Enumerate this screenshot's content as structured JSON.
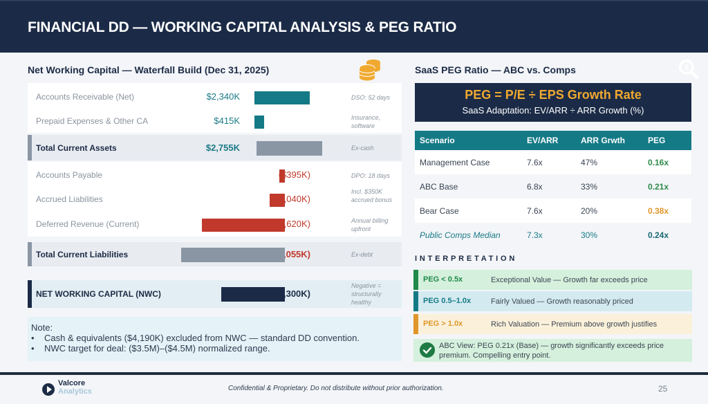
{
  "header": {
    "title": "FINANCIAL DD  —  WORKING CAPITAL ANALYSIS & PEG RATIO"
  },
  "waterfall": {
    "title": "Net Working Capital — Waterfall Build (Dec 31, 2025)",
    "icon": "coins-icon",
    "rows": [
      {
        "label": "Accounts Receivable (Net)",
        "value": "$2,340K",
        "amount_k": 2340,
        "note": "DSO: 52 days",
        "type": "asset"
      },
      {
        "label": "Prepaid Expenses & Other CA",
        "value": "$415K",
        "amount_k": 415,
        "note": "Insurance, software",
        "type": "asset"
      },
      {
        "label": "Total Current Assets",
        "value": "$2,755K",
        "amount_k": 2755,
        "note": "Ex-cash",
        "type": "total-assets"
      },
      {
        "label": "Accounts Payable",
        "value": "($395K)",
        "amount_k": -395,
        "note": "DPO: 18 days",
        "type": "liability"
      },
      {
        "label": "Accrued Liabilities",
        "value": "($1,040K)",
        "amount_k": -1040,
        "note": "Incl. $350K accrued bonus",
        "type": "liability"
      },
      {
        "label": "Deferred Revenue (Current)",
        "value": "($5,620K)",
        "amount_k": -5620,
        "note": "Annual billing upfront",
        "type": "liability"
      },
      {
        "label": "Total Current Liabilities",
        "value": "($7,055K)",
        "amount_k": -7055,
        "note": "Ex-debt",
        "type": "total-liabilities"
      },
      {
        "label": "NET WORKING CAPITAL (NWC)",
        "value": "($4,300K)",
        "amount_k": -4300,
        "note": "Negative = structurally healthy",
        "type": "nwc"
      }
    ],
    "note": {
      "heading": "Note:",
      "bullets": [
        "Cash & equivalents ($4,190K) excluded from NWC — standard DD convention.",
        "NWC target for deal: ($3.5M)–($4.5M) normalized range."
      ]
    }
  },
  "peg": {
    "title": "SaaS PEG Ratio — ABC vs. Comps",
    "icon": "magnifier-dollar-icon",
    "formula": "PEG  =  P/E  ÷  EPS Growth Rate",
    "adaptation": "SaaS Adaptation:  EV/ARR  ÷  ARR Growth (%)",
    "columns": [
      "Scenario",
      "EV/ARR",
      "ARR Grwth",
      "PEG"
    ],
    "rows": [
      {
        "scenario": "Management Case",
        "ev_arr": "7.6x",
        "growth": "47%",
        "peg": "0.16x",
        "color": "#2e8b4a"
      },
      {
        "scenario": "ABC Base",
        "ev_arr": "6.8x",
        "growth": "33%",
        "peg": "0.21x",
        "color": "#2e8b4a"
      },
      {
        "scenario": "Bear Case",
        "ev_arr": "7.6x",
        "growth": "20%",
        "peg": "0.38x",
        "color": "#e0962a"
      },
      {
        "scenario": "Public Comps Median",
        "ev_arr": "7.3x",
        "growth": "30%",
        "peg": "0.24x",
        "color": "#1a6a76"
      }
    ],
    "interpretation_title": "INTERPRETATION",
    "interpretation": [
      {
        "key": "PEG < 0.5x",
        "desc": "Exceptional Value — Growth far exceeds price",
        "color": "#1f8a4a",
        "bg": "#d5f0dc"
      },
      {
        "key": "PEG 0.5–1.0x",
        "desc": "Fairly Valued — Growth reasonably priced",
        "color": "#147a86",
        "bg": "#d3eaf0"
      },
      {
        "key": "PEG > 1.0x",
        "desc": "Rich Valuation — Premium above growth justifies",
        "color": "#e0962a",
        "bg": "#fbf1da"
      }
    ],
    "view": "ABC View: PEG 0.21x (Base) — growth significantly exceeds price premium. Compelling entry point."
  },
  "footer": {
    "logo_line1": "Valcore",
    "logo_line2": "Analytics",
    "confidential": "Confidential & Proprietary. Do not distribute without prior authorization.",
    "page": "25"
  },
  "colors": {
    "navy": "#1b2b47",
    "teal": "#147a86",
    "red": "#c0392b",
    "gray": "#8b96a5",
    "gold": "#f0a930"
  }
}
